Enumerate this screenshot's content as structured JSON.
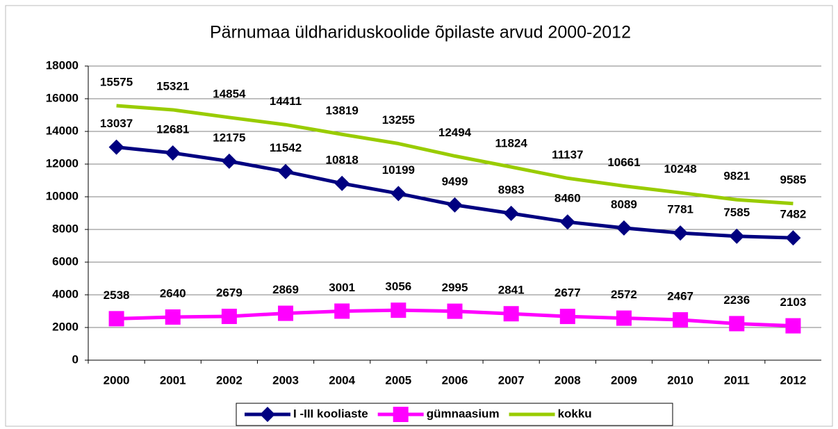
{
  "chart_data": {
    "type": "line",
    "title": "Pärnumaa üldhariduskoolide õpilaste arvud 2000-2012",
    "categories": [
      "2000",
      "2001",
      "2002",
      "2003",
      "2004",
      "2005",
      "2006",
      "2007",
      "2008",
      "2009",
      "2010",
      "2011",
      "2012"
    ],
    "series": [
      {
        "name": "I -III kooliaste",
        "color": "#000080",
        "marker": "diamond",
        "values": [
          13037,
          12681,
          12175,
          11542,
          10818,
          10199,
          9499,
          8983,
          8460,
          8089,
          7781,
          7585,
          7482
        ]
      },
      {
        "name": "gümnaasium",
        "color": "#ff00ff",
        "marker": "square",
        "values": [
          2538,
          2640,
          2679,
          2869,
          3001,
          3056,
          2995,
          2841,
          2677,
          2572,
          2467,
          2236,
          2103
        ]
      },
      {
        "name": "kokku",
        "color": "#99cc00",
        "marker": "none",
        "values": [
          15575,
          15321,
          14854,
          14411,
          13819,
          13255,
          12494,
          11824,
          11137,
          10661,
          10248,
          9821,
          9585
        ]
      }
    ],
    "ylim": [
      0,
      18000
    ],
    "yticks": [
      0,
      2000,
      4000,
      6000,
      8000,
      10000,
      12000,
      14000,
      16000,
      18000
    ],
    "grid": true,
    "legend": "bottom"
  }
}
